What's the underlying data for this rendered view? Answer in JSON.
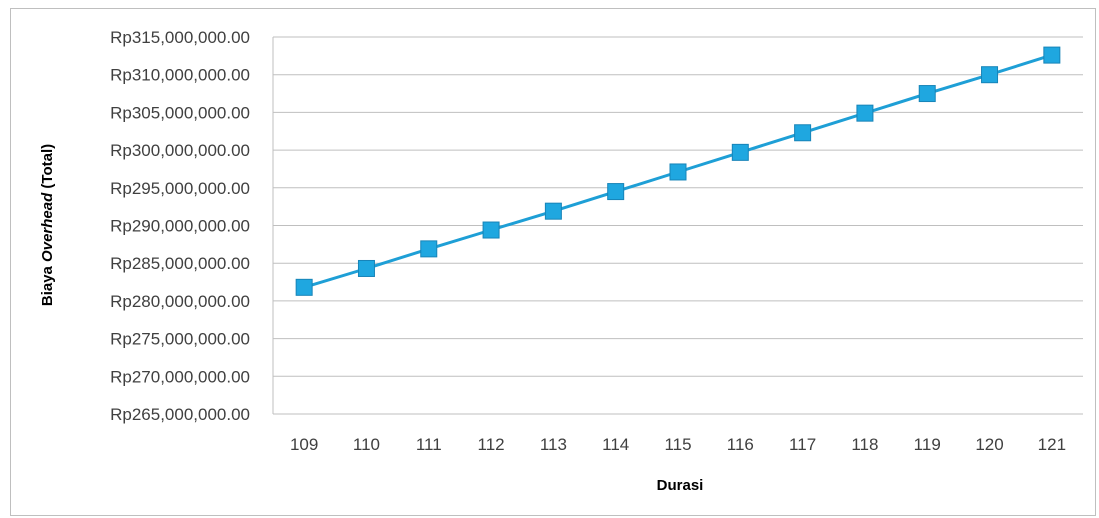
{
  "chart_data": {
    "type": "line",
    "title": "",
    "xlabel": "Durasi",
    "ylabel": {
      "prefix": "Biaya ",
      "italic": "Overhead",
      "suffix": " (Total)"
    },
    "x": [
      109,
      110,
      111,
      112,
      113,
      114,
      115,
      116,
      117,
      118,
      119,
      120,
      121
    ],
    "series": [
      {
        "values": [
          281800000,
          284300000,
          286900000,
          289400000,
          291900000,
          294500000,
          297100000,
          299700000,
          302300000,
          304900000,
          307500000,
          310000000,
          312600000
        ],
        "color": "#1e9fd6",
        "marker": "square",
        "marker_color": "#1fa7e0"
      }
    ],
    "ylim": [
      265000000,
      315000000
    ],
    "ytick_values": [
      265000000,
      270000000,
      275000000,
      280000000,
      285000000,
      290000000,
      295000000,
      300000000,
      305000000,
      310000000,
      315000000
    ],
    "ytick_labels": [
      "Rp265,000,000.00",
      "Rp270,000,000.00",
      "Rp275,000,000.00",
      "Rp280,000,000.00",
      "Rp285,000,000.00",
      "Rp290,000,000.00",
      "Rp295,000,000.00",
      "Rp300,000,000.00",
      "Rp305,000,000.00",
      "Rp310,000,000.00",
      "Rp315,000,000.00"
    ],
    "xtick_labels": [
      "109",
      "110",
      "111",
      "112",
      "113",
      "114",
      "115",
      "116",
      "117",
      "118",
      "119",
      "120",
      "121"
    ],
    "grid": true,
    "legend": "none"
  }
}
